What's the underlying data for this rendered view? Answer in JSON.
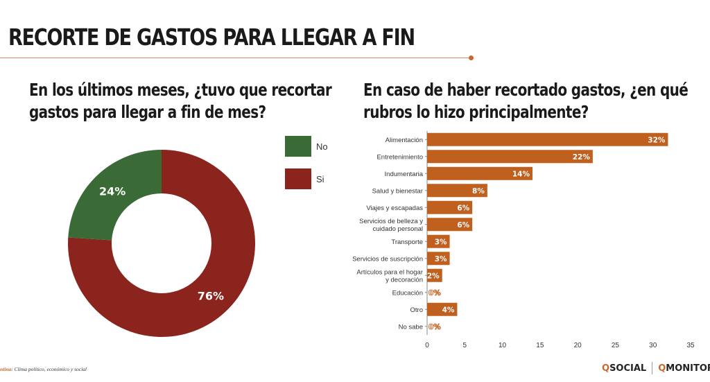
{
  "page": {
    "title": "RECORTE DE GASTOS PARA LLEGAR A FIN",
    "footer": {
      "source_label": "ntina:",
      "source_text": " Clima político, económico y social",
      "logo_social": "SOCIAL",
      "logo_monitor": "MONITOR",
      "logo_q": "Q"
    }
  },
  "left": {
    "question_lines": [
      "En los últimos meses, ¿tuvo que recortar",
      "gastos para llegar a fin de mes?"
    ],
    "legend": [
      {
        "label": "No",
        "color": "#3a6b36"
      },
      {
        "label": "Si",
        "color": "#8b241c"
      }
    ]
  },
  "right": {
    "question_lines": [
      "En caso de haber recortado gastos, ¿en qué",
      "rubros lo hizo principalmente?"
    ]
  },
  "chart_data": [
    {
      "type": "pie",
      "variant": "donut",
      "categories": [
        "No",
        "Si"
      ],
      "values": [
        24,
        76
      ],
      "labels": [
        "24%",
        "76%"
      ],
      "colors": [
        "#3a6b36",
        "#8b241c"
      ],
      "legend_position": "right"
    },
    {
      "type": "bar",
      "orientation": "horizontal",
      "categories": [
        "Alimentación",
        "Entretenimiento",
        "Indumentaria",
        "Salud y bienestar",
        "Viajes y escapadas",
        "Servicios de belleza y\ncuidado personal",
        "Transporte",
        "Servicios de suscripción",
        "Artículos para el hogar\ny decoración",
        "Educación",
        "Otro",
        "No sabe"
      ],
      "values": [
        32,
        22,
        14,
        8,
        6,
        6,
        3,
        3,
        2,
        0,
        4,
        0
      ],
      "data_labels": [
        "32%",
        "22%",
        "14%",
        "8%",
        "6%",
        "6%",
        "3%",
        "3%",
        "2%",
        "0%",
        "4%",
        "0%"
      ],
      "xlim": [
        0,
        35
      ],
      "xticks": [
        0,
        5,
        10,
        15,
        20,
        25,
        30,
        35
      ],
      "bar_color": "#c0601f",
      "grid": false
    }
  ]
}
